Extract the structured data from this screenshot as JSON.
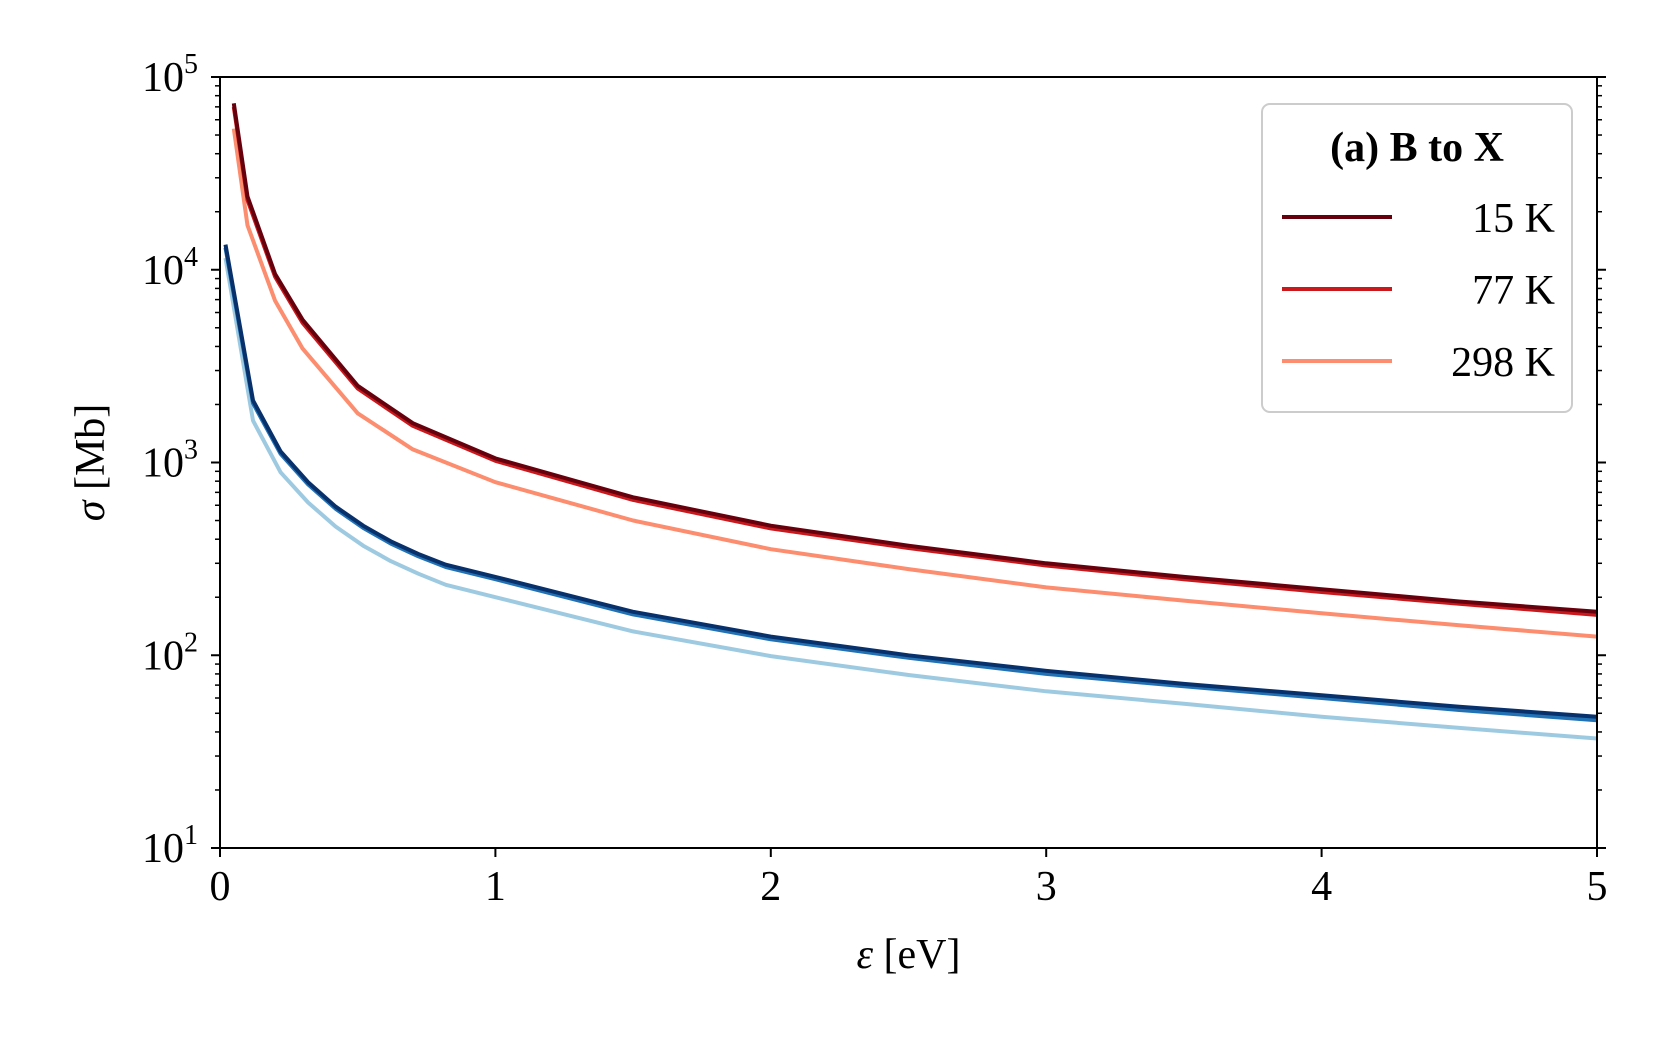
{
  "chart_data": {
    "type": "line",
    "xlabel": "ε [eV]",
    "ylabel": "σ [Mb]",
    "xlim": [
      0,
      5
    ],
    "ylim": [
      10,
      100000
    ],
    "yscale": "log",
    "grid": false,
    "legend_placement": "top-right",
    "legend_title": "(a) B to X",
    "x_ticks": [
      "0",
      "1",
      "2",
      "3",
      "4",
      "5"
    ],
    "y_ticks": [
      {
        "base": "10",
        "exp": "1"
      },
      {
        "base": "10",
        "exp": "2"
      },
      {
        "base": "10",
        "exp": "3"
      },
      {
        "base": "10",
        "exp": "4"
      },
      {
        "base": "10",
        "exp": "5"
      }
    ],
    "series": [
      {
        "name": "15 K",
        "color": "#67000d",
        "x": [
          0.05,
          0.1,
          0.2,
          0.3,
          0.5,
          0.7,
          1,
          1.5,
          2,
          2.5,
          3,
          3.5,
          4,
          4.5,
          5
        ],
        "y": [
          73000,
          24000,
          9500,
          5500,
          2500,
          1600,
          1050,
          660,
          470,
          370,
          300,
          255,
          220,
          190,
          168
        ]
      },
      {
        "name": "77 K",
        "color": "#cb181d",
        "x": [
          0.05,
          0.1,
          0.2,
          0.3,
          0.5,
          0.7,
          1,
          1.5,
          2,
          2.5,
          3,
          3.5,
          4,
          4.5,
          5
        ],
        "y": [
          70000,
          23000,
          9200,
          5300,
          2420,
          1550,
          1020,
          640,
          455,
          360,
          292,
          248,
          213,
          185,
          162
        ]
      },
      {
        "name": "298 K",
        "color": "#fc8d6e",
        "x": [
          0.05,
          0.1,
          0.2,
          0.3,
          0.5,
          0.7,
          1,
          1.5,
          2,
          2.5,
          3,
          3.5,
          4,
          4.5,
          5
        ],
        "y": [
          54000,
          17000,
          6900,
          3900,
          1800,
          1170,
          790,
          500,
          355,
          280,
          225,
          192,
          165,
          143,
          125
        ]
      },
      {
        "color": "#08306b",
        "x": [
          0.02,
          0.12,
          0.22,
          0.32,
          0.42,
          0.52,
          0.62,
          0.72,
          0.82,
          1,
          1.5,
          2,
          2.5,
          3,
          3.5,
          4,
          4.5,
          5
        ],
        "y": [
          13500,
          2100,
          1140,
          790,
          590,
          470,
          390,
          335,
          295,
          255,
          168,
          125,
          100,
          83,
          71,
          62,
          54,
          48
        ]
      },
      {
        "color": "#2171b5",
        "x": [
          0.02,
          0.12,
          0.22,
          0.32,
          0.42,
          0.52,
          0.62,
          0.72,
          0.82,
          1,
          1.5,
          2,
          2.5,
          3,
          3.5,
          4,
          4.5,
          5
        ],
        "y": [
          13000,
          2030,
          1110,
          770,
          575,
          458,
          380,
          326,
          287,
          248,
          163,
          121,
          97,
          80,
          69,
          60,
          52,
          46
        ]
      },
      {
        "color": "#9ecae1",
        "x": [
          0.02,
          0.12,
          0.22,
          0.32,
          0.42,
          0.52,
          0.62,
          0.72,
          0.82,
          1,
          1.5,
          2,
          2.5,
          3,
          3.5,
          4,
          4.5,
          5
        ],
        "y": [
          11500,
          1650,
          890,
          620,
          465,
          370,
          308,
          265,
          232,
          200,
          133,
          99,
          79,
          65,
          56,
          48,
          42,
          37
        ]
      }
    ]
  }
}
